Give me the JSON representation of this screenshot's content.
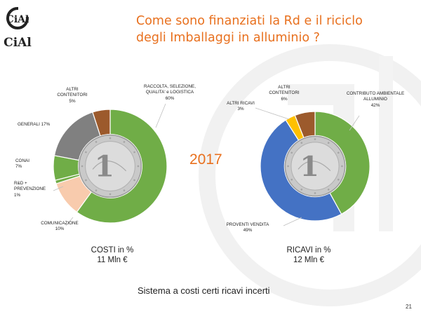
{
  "slide": {
    "logo_text_top": "CiAl",
    "logo_text_bottom": "CiAl",
    "title_line1": "Come sono finanziati la Rd e il riciclo",
    "title_line2": "degli Imballaggi in alluminio ?",
    "year": "2017",
    "footer": "Sistema a costi certi ricavi incerti",
    "page_number": "21",
    "coin_text": "1",
    "colors": {
      "accent": "#e8701e",
      "green": "#70ad47",
      "gray": "#808080",
      "brown": "#9c5a2c",
      "peach": "#f8cbad",
      "blue": "#4472c4",
      "yellow": "#ffc000"
    }
  },
  "chart_data": [
    {
      "type": "pie",
      "subtitle_line1": "COSTI in %",
      "subtitle_line2": "11 Mln €",
      "slices": [
        {
          "label_lines": [
            "RACCOLTA, SELEZIONE,",
            "QUALITA' e LOGISTICA",
            "60%"
          ],
          "value": 60,
          "color": "#70ad47"
        },
        {
          "label_lines": [
            "COMUNICAZIONE",
            "10%"
          ],
          "value": 10,
          "color": "#f8cbad"
        },
        {
          "label_lines": [
            "R&D +",
            "PREVENZIONE",
            "1%"
          ],
          "value": 1,
          "color": "#70ad47"
        },
        {
          "label_lines": [
            "CONAI",
            "7%"
          ],
          "value": 7,
          "color": "#70ad47"
        },
        {
          "label_lines": [
            "GENERALI 17%"
          ],
          "value": 17,
          "color": "#808080"
        },
        {
          "label_lines": [
            "ALTRI",
            "CONTENITORI",
            "5%"
          ],
          "value": 5,
          "color": "#9c5a2c"
        }
      ]
    },
    {
      "type": "pie",
      "subtitle_line1": "RICAVI in %",
      "subtitle_line2": "12 Mln €",
      "slices": [
        {
          "label_lines": [
            "CONTRIBUTO AMBIENTALE",
            "ALLUMINIO",
            "42%"
          ],
          "value": 42,
          "color": "#70ad47"
        },
        {
          "label_lines": [
            "PROVENTI VENDITA",
            "49%"
          ],
          "value": 49,
          "color": "#4472c4"
        },
        {
          "label_lines": [
            "ALTRI RICAVI",
            "3%"
          ],
          "value": 3,
          "color": "#ffc000"
        },
        {
          "label_lines": [
            "ALTRI",
            "CONTENITORI",
            "6%"
          ],
          "value": 6,
          "color": "#9c5a2c"
        }
      ]
    }
  ]
}
